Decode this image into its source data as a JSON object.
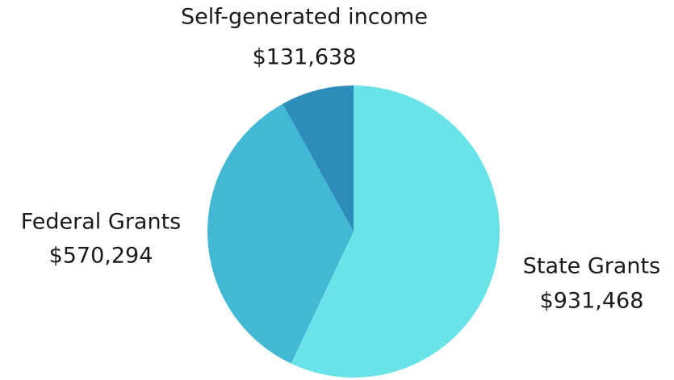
{
  "chart_data": {
    "type": "pie",
    "categories": [
      "State Grants",
      "Federal Grants",
      "Self-generated income"
    ],
    "values": [
      931468,
      570294,
      131638
    ],
    "value_labels": [
      "$931,468",
      "$570,294",
      "$131,638"
    ],
    "colors": [
      "#6ae3e8",
      "#42b8d5",
      "#2d8cba"
    ]
  }
}
